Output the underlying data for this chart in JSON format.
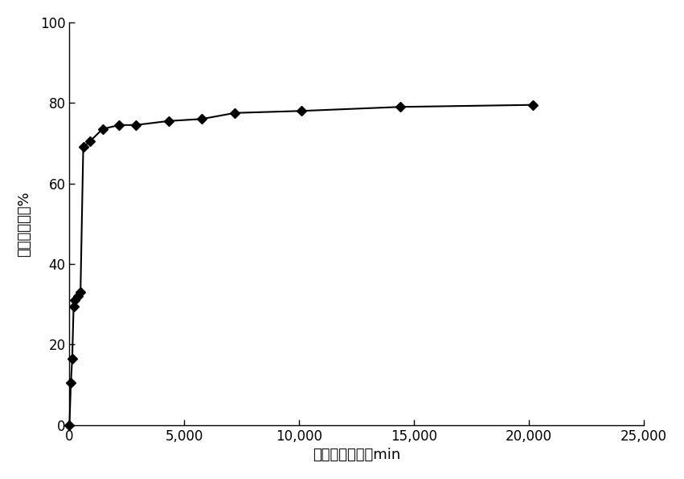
{
  "x": [
    0,
    60,
    120,
    180,
    240,
    360,
    480,
    600,
    900,
    1440,
    2160,
    2880,
    4320,
    5760,
    7200,
    10080,
    14400,
    20160
  ],
  "y": [
    0,
    10.5,
    16.5,
    29.5,
    31.0,
    32.0,
    33.0,
    69.0,
    70.5,
    73.5,
    74.5,
    74.5,
    75.5,
    76.0,
    77.5,
    78.0,
    79.0,
    79.5
  ],
  "xlabel": "自发渗吸时间，min",
  "ylabel": "含水饱和度，%",
  "xlim": [
    0,
    25000
  ],
  "ylim": [
    0,
    100
  ],
  "xticks": [
    0,
    5000,
    10000,
    15000,
    20000,
    25000
  ],
  "yticks": [
    0,
    20,
    40,
    60,
    80,
    100
  ],
  "line_color": "#000000",
  "marker_color": "#000000",
  "marker": "D",
  "markersize": 6,
  "linewidth": 1.5,
  "background_color": "#ffffff",
  "fig_width": 8.51,
  "fig_height": 5.97,
  "dpi": 100,
  "tick_fontsize": 12,
  "label_fontsize": 13
}
